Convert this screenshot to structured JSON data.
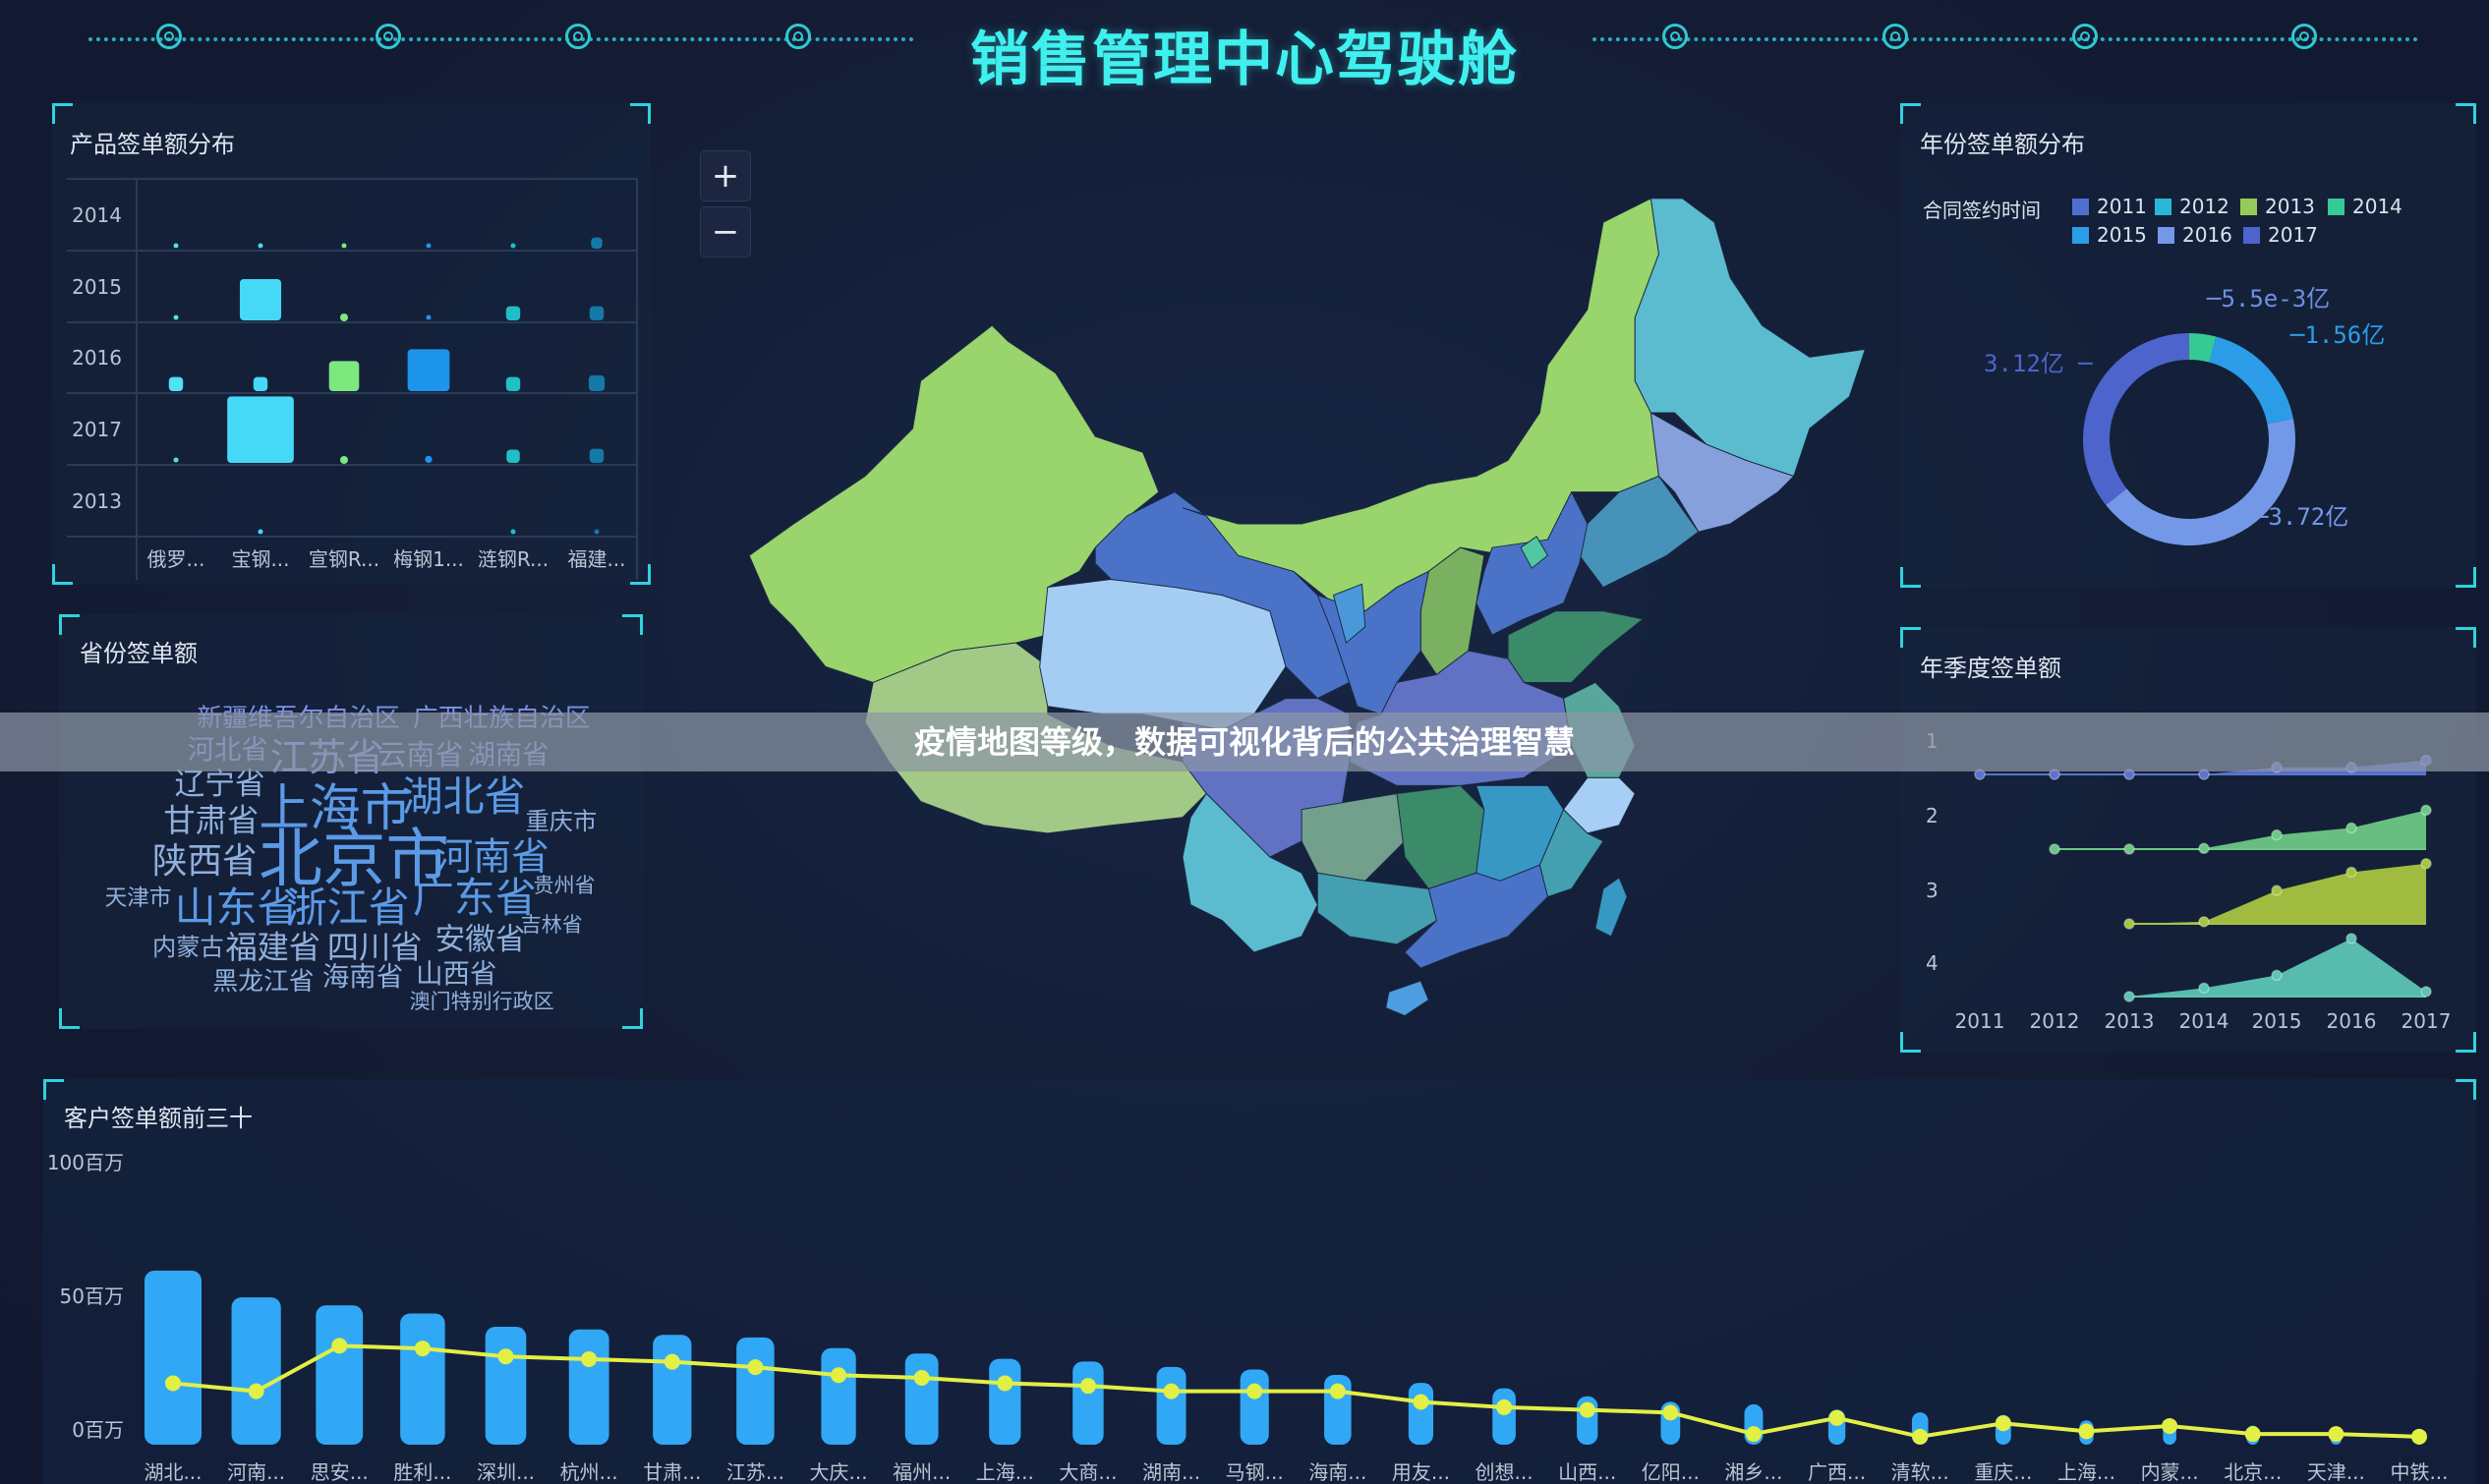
{
  "header": {
    "title": "销售管理中心驾驶舱"
  },
  "banner": {
    "text": "疫情地图等级，数据可视化背后的公共治理智慧"
  },
  "map": {
    "zoom_in_label": "+",
    "zoom_out_label": "−"
  },
  "product_panel": {
    "title": "产品签单额分布",
    "chart_data": {
      "type": "scatter",
      "symbol": "square",
      "y_categories": [
        "2014",
        "2015",
        "2016",
        "2017",
        "2013"
      ],
      "x_categories": [
        "俄罗...",
        "宝钢...",
        "宣钢R...",
        "梅钢1...",
        "涟钢R...",
        "福建..."
      ],
      "colors": [
        "#4de3f0",
        "#45d8f7",
        "#7ce87e",
        "#1e95ec",
        "#1fbfc6",
        "#137aa8"
      ],
      "values": [
        [
          0.3,
          0.3,
          0.3,
          0.3,
          0.3,
          5
        ],
        [
          0.5,
          68,
          1,
          0.5,
          8,
          8
        ],
        [
          8,
          8,
          36,
          70,
          8,
          10
        ],
        [
          0.5,
          176,
          1.5,
          2,
          7,
          8
        ],
        [
          0,
          0.3,
          0,
          0,
          0.3,
          0.3
        ]
      ]
    }
  },
  "province_panel": {
    "title": "省份签单额",
    "words": [
      "新疆维吾尔自治区",
      "广西壮族自治区",
      "河北省",
      "江苏省",
      "云南省",
      "湖南省",
      "辽宁省",
      "上海市",
      "湖北省",
      "甘肃省",
      "重庆市",
      "陕西省",
      "北京市",
      "河南省",
      "天津市",
      "山东省",
      "浙江省",
      "广东省",
      "贵州省",
      "吉林省",
      "内蒙古",
      "福建省",
      "四川省",
      "安徽省",
      "黑龙江省",
      "海南省",
      "山西省",
      "澳门特别行政区"
    ]
  },
  "year_panel": {
    "title": "年份签单额分布",
    "chart_data": {
      "type": "pie",
      "donut": true,
      "legend_title": "合同签约时间",
      "legend": [
        "2011",
        "2012",
        "2013",
        "2014",
        "2015",
        "2016",
        "2017"
      ],
      "colors": [
        "#4f6fd0",
        "#2ab7d6",
        "#94cc5a",
        "#35c996",
        "#2b9de8",
        "#7398e8",
        "#4d64cc"
      ],
      "values": [
        null,
        null,
        0.0055,
        0.35,
        1.56,
        3.72,
        3.12
      ],
      "labels": {
        "2013": "5.5e-3亿",
        "2015": "1.56亿",
        "2016": "3.72亿",
        "2017": "3.12亿"
      }
    }
  },
  "quarter_panel": {
    "title": "年季度签单额",
    "chart_data": {
      "type": "area",
      "x": [
        "2011",
        "2012",
        "2013",
        "2014",
        "2015",
        "2016",
        "2017"
      ],
      "series": [
        {
          "name": "1",
          "color": "#5b73d0",
          "values": [
            0,
            0,
            0,
            0,
            0.1,
            0.1,
            0.2
          ]
        },
        {
          "name": "2",
          "color": "#6cc784",
          "values": [
            null,
            0,
            0,
            0.01,
            0.2,
            0.3,
            0.55
          ]
        },
        {
          "name": "3",
          "color": "#a6c440",
          "values": [
            null,
            null,
            0,
            0.03,
            0.47,
            0.73,
            0.85
          ]
        },
        {
          "name": "4",
          "color": "#5bc4b4",
          "values": [
            null,
            null,
            0,
            0.12,
            0.3,
            0.82,
            0.07
          ]
        }
      ]
    }
  },
  "customer_panel": {
    "title": "客户签单额前三十",
    "chart_data": {
      "type": "bar",
      "y_ticks": [
        "0百万",
        "50百万",
        "100百万"
      ],
      "ylim": [
        0,
        100
      ],
      "bar_color": "#31a8f5",
      "line_color": "#e2ef45",
      "categories": [
        "湖北...",
        "河南...",
        "思安...",
        "胜利...",
        "深圳...",
        "杭州...",
        "甘肃...",
        "江苏...",
        "大庆...",
        "福州...",
        "上海...",
        "大商...",
        "湖南...",
        "马钢...",
        "海南...",
        "用友...",
        "创想...",
        "山西...",
        "亿阳...",
        "湘乡...",
        "广西...",
        "清软...",
        "重庆...",
        "上海...",
        "内蒙...",
        "北京...",
        "天津...",
        "中铁..."
      ],
      "bars": [
        64,
        54,
        51,
        48,
        43,
        42,
        40,
        39,
        35,
        33,
        31,
        30,
        28,
        27,
        25,
        22,
        20,
        17,
        15,
        14,
        12,
        11,
        10,
        8,
        7,
        6,
        4,
        2
      ],
      "line": [
        23,
        20,
        37,
        36,
        33,
        32,
        31,
        29,
        26,
        25,
        23,
        22,
        20,
        20,
        20,
        16,
        14,
        13,
        12,
        4,
        10,
        3,
        8,
        5,
        7,
        4,
        4,
        3
      ]
    }
  }
}
